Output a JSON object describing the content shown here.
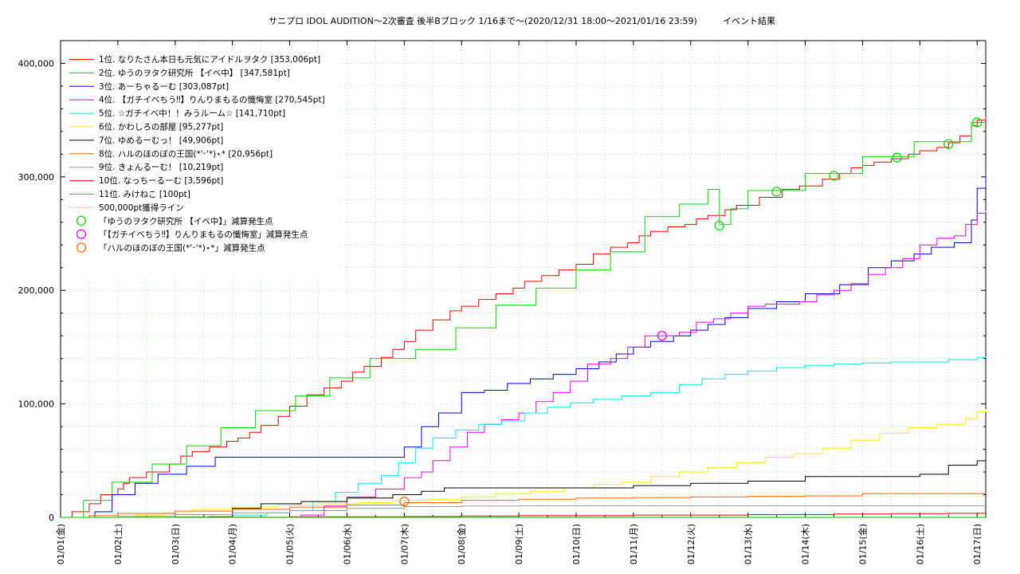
{
  "chart_data": {
    "type": "line",
    "title": "サニプロ IDOL AUDITION〜2次審査 後半Bブロック 1/16まで〜(2020/12/31 18:00〜2021/01/16 23:59)",
    "subtitle": "イベント結果",
    "xlabel": "",
    "ylabel": "",
    "grid": true,
    "legend_position": "top-left",
    "x_unit": "day (0 = 01/01 00:00)",
    "xlim": [
      0,
      16.15
    ],
    "ylim": [
      0,
      420000
    ],
    "x_ticks": [
      "01/01(金)",
      "01/02(土)",
      "01/03(日)",
      "01/04(月)",
      "01/05(火)",
      "01/06(水)",
      "01/07(木)",
      "01/08(金)",
      "01/09(土)",
      "01/10(日)",
      "01/11(月)",
      "01/12(火)",
      "01/13(水)",
      "01/14(木)",
      "01/15(金)",
      "01/16(土)",
      "01/17(日)"
    ],
    "y_ticks": [
      "0",
      "100,000",
      "200,000",
      "300,000",
      "400,000"
    ],
    "series": [
      {
        "name": "1位. なりたさん本日も元気にアイドルヲタク [353,006pt]",
        "color": "#ff0000",
        "x": [
          0,
          0.2,
          0.5,
          0.7,
          1.0,
          1.1,
          1.2,
          1.5,
          1.9,
          2.1,
          2.3,
          2.6,
          2.9,
          3.1,
          3.3,
          3.5,
          3.8,
          4.0,
          4.3,
          4.6,
          4.9,
          5.1,
          5.3,
          5.6,
          5.8,
          6.0,
          6.2,
          6.5,
          6.8,
          7.0,
          7.3,
          7.6,
          7.9,
          8.1,
          8.4,
          8.7,
          9.0,
          9.3,
          9.6,
          9.9,
          10.1,
          10.3,
          10.6,
          10.9,
          11.1,
          11.3,
          11.6,
          11.8,
          12.2,
          12.6,
          12.9,
          13.3,
          13.6,
          13.8,
          14.0,
          14.2,
          14.5,
          14.8,
          15.0,
          15.3,
          15.5,
          15.7,
          15.9,
          16.0,
          16.15
        ],
        "y": [
          0,
          5000,
          12000,
          20000,
          25000,
          30000,
          35000,
          40000,
          47000,
          54000,
          58000,
          62000,
          67000,
          70000,
          75000,
          81000,
          89000,
          98000,
          108000,
          114000,
          120000,
          128000,
          133000,
          141000,
          148000,
          155000,
          165000,
          174000,
          182000,
          186000,
          192000,
          197000,
          202000,
          208000,
          213000,
          218000,
          223000,
          232000,
          238000,
          242000,
          248000,
          252000,
          256000,
          258000,
          263000,
          266000,
          271000,
          275000,
          282000,
          289000,
          292000,
          298000,
          303000,
          308000,
          310000,
          313000,
          316000,
          320000,
          323000,
          326000,
          330000,
          336000,
          345000,
          350000,
          353006
        ]
      },
      {
        "name": "2位. ゆうのヲタク研究所 【イベ中】 [347,581pt]",
        "color": "#00dd00",
        "x": [
          0,
          0.4,
          0.9,
          1.6,
          2.2,
          2.8,
          3.4,
          4.1,
          4.7,
          5.4,
          6.2,
          6.9,
          7.6,
          8.3,
          9.0,
          9.6,
          10.2,
          10.8,
          11.3,
          11.5,
          11.5,
          11.7,
          12.0,
          12.5,
          13.0,
          13.5,
          14.0,
          14.5,
          14.9,
          15.5,
          15.9,
          16.15
        ],
        "y": [
          0,
          15000,
          31000,
          47000,
          63000,
          79000,
          94000,
          107000,
          123000,
          140000,
          148000,
          167000,
          187000,
          202000,
          218000,
          234000,
          265000,
          276000,
          289000,
          289000,
          258000,
          272000,
          288000,
          288000,
          303000,
          303000,
          318000,
          318000,
          331000,
          331000,
          348000,
          347581
        ]
      },
      {
        "name": "3位. あーちゃるーむ [303,087pt]",
        "color": "#0000dd",
        "x": [
          0,
          0.6,
          0.9,
          1.3,
          1.7,
          2.2,
          2.7,
          3.2,
          3.6,
          4.2,
          4.7,
          5.3,
          5.8,
          6.0,
          6.3,
          6.6,
          7.0,
          7.4,
          7.8,
          8.2,
          8.6,
          9.0,
          9.4,
          9.7,
          10.0,
          10.3,
          10.7,
          11.0,
          11.3,
          11.6,
          12.0,
          12.5,
          13.0,
          13.6,
          14.1,
          14.5,
          14.9,
          15.2,
          15.6,
          15.9,
          16.0,
          16.15
        ],
        "y": [
          0,
          5000,
          20000,
          30000,
          38000,
          45000,
          53000,
          53000,
          53000,
          53000,
          53000,
          53000,
          53000,
          62000,
          80000,
          92000,
          110000,
          112000,
          118000,
          122000,
          126000,
          131000,
          137000,
          144000,
          150000,
          155000,
          160000,
          165000,
          170000,
          176000,
          184000,
          190000,
          197000,
          205000,
          220000,
          226000,
          232000,
          238000,
          242000,
          262000,
          290000,
          303087
        ]
      },
      {
        "name": "4位. 【ガチイベちう‼】りんりまもるの懺悔室 [270,545pt]",
        "color": "#ee00ee",
        "x": [
          0,
          1.0,
          2.0,
          3.0,
          3.8,
          4.2,
          4.6,
          5.0,
          5.5,
          6.0,
          6.3,
          6.5,
          6.8,
          7.1,
          7.4,
          7.7,
          8.0,
          8.3,
          8.6,
          8.9,
          9.2,
          9.6,
          9.9,
          10.2,
          10.5,
          10.8,
          11.1,
          11.4,
          11.7,
          12.0,
          12.3,
          12.6,
          12.9,
          13.2,
          13.5,
          13.8,
          14.1,
          14.4,
          14.7,
          15.0,
          15.3,
          15.6,
          15.8,
          16.0,
          16.15
        ],
        "y": [
          0,
          0,
          0,
          0,
          0,
          2000,
          10000,
          18000,
          25000,
          35000,
          40000,
          50000,
          62000,
          75000,
          82000,
          86000,
          92000,
          102000,
          110000,
          120000,
          135000,
          140000,
          150000,
          160000,
          160000,
          163000,
          172000,
          175000,
          180000,
          186000,
          188000,
          188000,
          190000,
          196000,
          200000,
          206000,
          214000,
          220000,
          228000,
          240000,
          246000,
          248000,
          258000,
          268000,
          270545
        ]
      },
      {
        "name": "5位. ☆ガチイベ中！！みうルーム☆ [141,710pt]",
        "color": "#00eeee",
        "x": [
          0,
          1.0,
          2.0,
          3.0,
          3.6,
          4.0,
          4.4,
          4.8,
          5.2,
          5.6,
          5.9,
          6.2,
          6.5,
          6.9,
          7.3,
          7.7,
          8.1,
          8.5,
          8.9,
          9.3,
          9.8,
          10.3,
          10.8,
          11.2,
          11.6,
          12.0,
          12.5,
          13.0,
          13.5,
          14.0,
          14.5,
          15.0,
          15.5,
          16.0,
          16.15
        ],
        "y": [
          0,
          0,
          500,
          2000,
          4000,
          6000,
          14000,
          22000,
          30000,
          37000,
          48000,
          61000,
          70000,
          77000,
          82000,
          85000,
          92000,
          97000,
          101000,
          104000,
          107000,
          110000,
          117000,
          122000,
          126000,
          129000,
          132000,
          134000,
          135000,
          136000,
          137000,
          137000,
          139000,
          141000,
          141710
        ]
      },
      {
        "name": "6位. かわしろの部屋 [95,277pt]",
        "color": "#ffee00",
        "x": [
          0,
          1.3,
          1.8,
          2.3,
          3.0,
          3.8,
          4.5,
          5.2,
          5.8,
          6.4,
          7.0,
          7.6,
          8.2,
          8.8,
          9.3,
          9.8,
          10.3,
          10.8,
          11.3,
          11.8,
          12.3,
          12.8,
          13.3,
          13.8,
          14.3,
          14.8,
          15.3,
          15.8,
          16.0,
          16.15
        ],
        "y": [
          0,
          2000,
          4000,
          7000,
          9000,
          11000,
          12000,
          13000,
          15000,
          16000,
          18000,
          21000,
          23000,
          26000,
          29000,
          31000,
          36000,
          40000,
          44000,
          48000,
          53000,
          56000,
          61000,
          68000,
          74000,
          79000,
          82000,
          87000,
          93000,
          95277
        ]
      },
      {
        "name": "7位. ゆめるーむっ！ [49,906pt]",
        "color": "#000000",
        "x": [
          0,
          2.6,
          3.0,
          3.5,
          4.2,
          5.0,
          5.8,
          6.3,
          6.7,
          7.3,
          8.0,
          9.0,
          10.0,
          11.0,
          12.0,
          13.0,
          14.0,
          15.0,
          15.5,
          16.0,
          16.15
        ],
        "y": [
          0,
          500,
          8000,
          12000,
          14000,
          17000,
          20000,
          23000,
          26000,
          26000,
          26000,
          26000,
          28000,
          30000,
          32000,
          36000,
          36000,
          38000,
          46000,
          49900,
          49906
        ]
      },
      {
        "name": "8位. ハルのほのぼの王国(*'ᵕ'*)⋆* [20,956pt]",
        "color": "#ff6600",
        "x": [
          0,
          0.5,
          1.0,
          2.0,
          3.0,
          4.0,
          5.0,
          6.0,
          7.0,
          8.0,
          9.0,
          10.0,
          11.0,
          12.0,
          13.0,
          14.0,
          15.0,
          16.0,
          16.15
        ],
        "y": [
          0,
          1500,
          3500,
          5500,
          7000,
          9000,
          11000,
          13000,
          15000,
          16000,
          17000,
          17500,
          18000,
          18500,
          19000,
          21000,
          21000,
          21000,
          20956
        ]
      },
      {
        "name": "9位. きょんるーむ！ [10,219pt]",
        "color": "#999999",
        "x": [
          0,
          1.0,
          2.0,
          3.0,
          4.0,
          5.0,
          6.0,
          7.0,
          8.0,
          9.0,
          10.0,
          11.0,
          12.0,
          13.0,
          14.0,
          15.0,
          16.0,
          16.15
        ],
        "y": [
          0,
          1000,
          2500,
          4000,
          6000,
          8000,
          9500,
          10000,
          10200,
          10200,
          10219,
          10219,
          10219,
          10219,
          10219,
          10219,
          10219,
          10219
        ]
      },
      {
        "name": "10位. なっちーるーむ [3,596pt]",
        "color": "#ee0000",
        "x": [
          0,
          2.0,
          4.0,
          6.0,
          7.0,
          8.0,
          10.0,
          12.0,
          13.5,
          14.5,
          15.5,
          16.15
        ],
        "y": [
          0,
          200,
          500,
          800,
          1200,
          1500,
          2000,
          2500,
          3000,
          3300,
          3596,
          3596
        ]
      },
      {
        "name": "11位. みけねこ [100pt]",
        "color": "#22cc22",
        "x": [
          0,
          16.15
        ],
        "y": [
          100,
          100
        ]
      }
    ],
    "threshold_line": {
      "name": "500,000pt獲得ライン",
      "value": 500000,
      "color": "#ff7777"
    },
    "markers": [
      {
        "name": "「ゆうのヲタク研究所 【イベ中】」減算発生点",
        "color": "#00dd00",
        "points": [
          [
            11.5,
            257000
          ],
          [
            12.5,
            287000
          ],
          [
            13.5,
            301000
          ],
          [
            14.6,
            317000
          ],
          [
            15.5,
            329000
          ],
          [
            16.0,
            348000
          ]
        ]
      },
      {
        "name": "「【ガチイベちう‼】りんりまもるの懺悔室」減算発生点",
        "color": "#ee00ee",
        "points": [
          [
            10.5,
            160000
          ]
        ]
      },
      {
        "name": "「ハルのほのぼの王国(*'ᵕ'*)⋆*」減算発生点",
        "color": "#ff6600",
        "points": [
          [
            6.0,
            14000
          ]
        ]
      }
    ]
  }
}
